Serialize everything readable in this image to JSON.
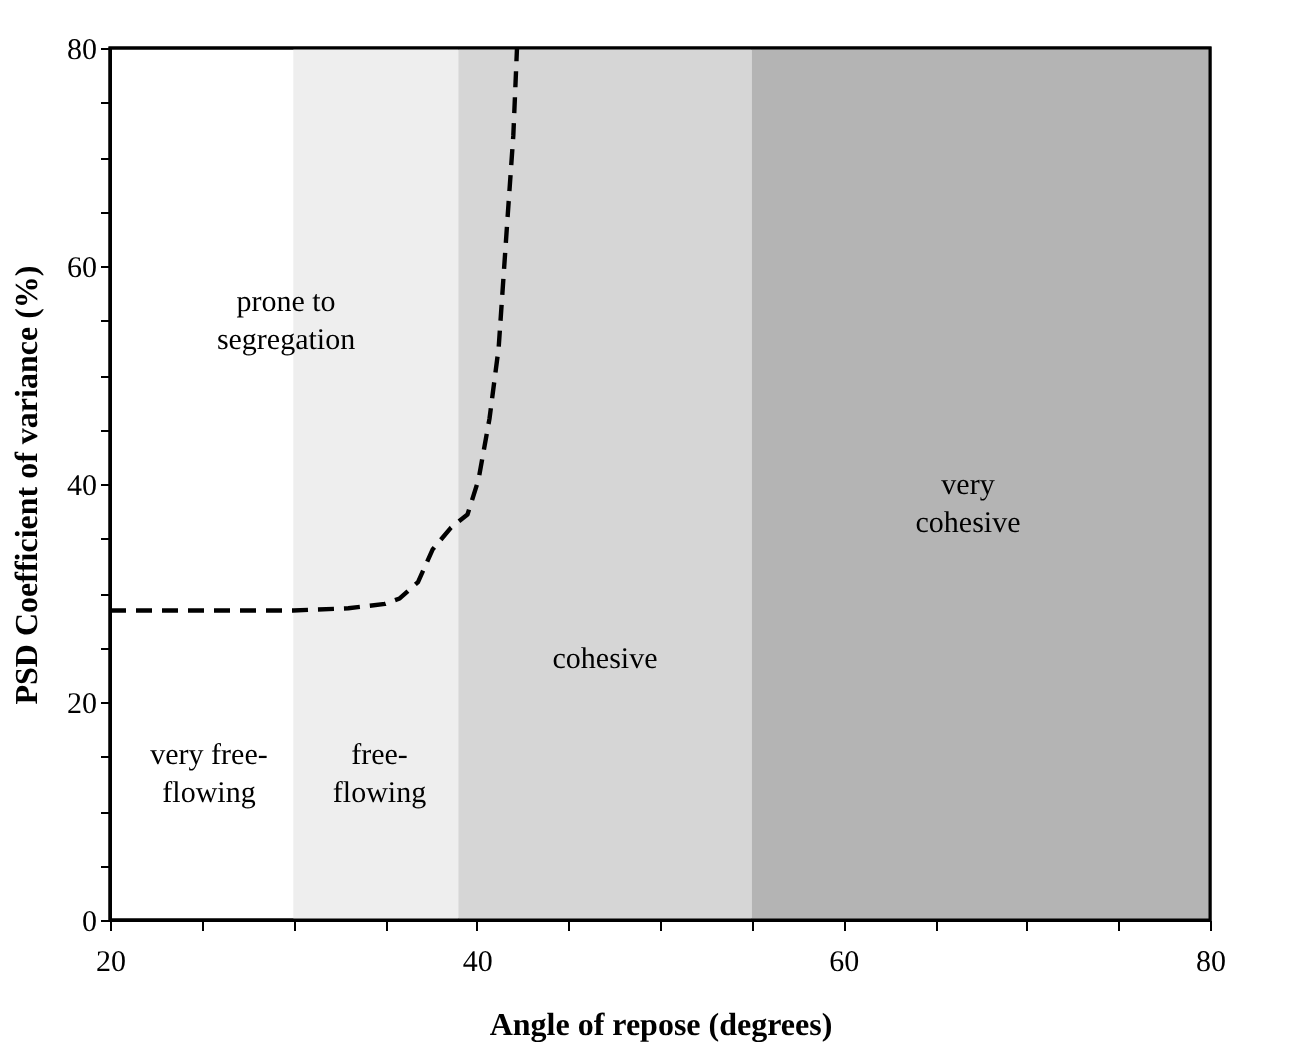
{
  "chart_data": {
    "type": "line",
    "xlabel": "Angle of repose (degrees)",
    "ylabel": "PSD Coefficient of variance (%)",
    "xlim": [
      20,
      80
    ],
    "ylim": [
      0,
      80
    ],
    "xticks": [
      20,
      {
        "value": 25,
        "label": null
      },
      {
        "value": 30,
        "label": null
      },
      {
        "value": 35,
        "label": null
      },
      40,
      {
        "value": 45,
        "label": null
      },
      {
        "value": 50,
        "label": null
      },
      {
        "value": 55,
        "label": null
      },
      60,
      {
        "value": 65,
        "label": null
      },
      {
        "value": 70,
        "label": null
      },
      {
        "value": 75,
        "label": null
      },
      80
    ],
    "yticks": [
      0,
      {
        "value": 5,
        "label": null
      },
      {
        "value": 10,
        "label": null
      },
      {
        "value": 15,
        "label": null
      },
      20,
      {
        "value": 25,
        "label": null
      },
      {
        "value": 30,
        "label": null
      },
      {
        "value": 35,
        "label": null
      },
      40,
      {
        "value": 45,
        "label": null
      },
      {
        "value": 50,
        "label": null
      },
      {
        "value": 55,
        "label": null
      },
      60,
      {
        "value": 65,
        "label": null
      },
      {
        "value": 70,
        "label": null
      },
      {
        "value": 75,
        "label": null
      },
      80
    ],
    "series": [
      {
        "color": "#000000",
        "line_style": "dashed",
        "marker": "none",
        "x": [
          20,
          25,
          30,
          33,
          35,
          35.8,
          36.8,
          37.6,
          38.6,
          39.5,
          40.1,
          40.7,
          41.2,
          41.7,
          42,
          42.2
        ],
        "values": [
          28.4,
          28.4,
          28.4,
          28.6,
          29,
          29.5,
          31,
          34,
          36,
          37.2,
          40.4,
          46,
          52.5,
          64.8,
          72,
          80
        ]
      }
    ],
    "bands": [
      {
        "axis": "x",
        "from": 30,
        "to": 39,
        "color": "#eeeeee"
      },
      {
        "axis": "x",
        "from": 39,
        "to": 55,
        "color": "#d6d6d6"
      },
      {
        "axis": "x",
        "from": 55,
        "to": 80,
        "color": "#b4b4b4"
      }
    ],
    "annotations": [
      "very free-\nflowing",
      "free-\nflowing",
      "prone to\nsegregation",
      "cohesive",
      "very\ncohesive"
    ]
  }
}
